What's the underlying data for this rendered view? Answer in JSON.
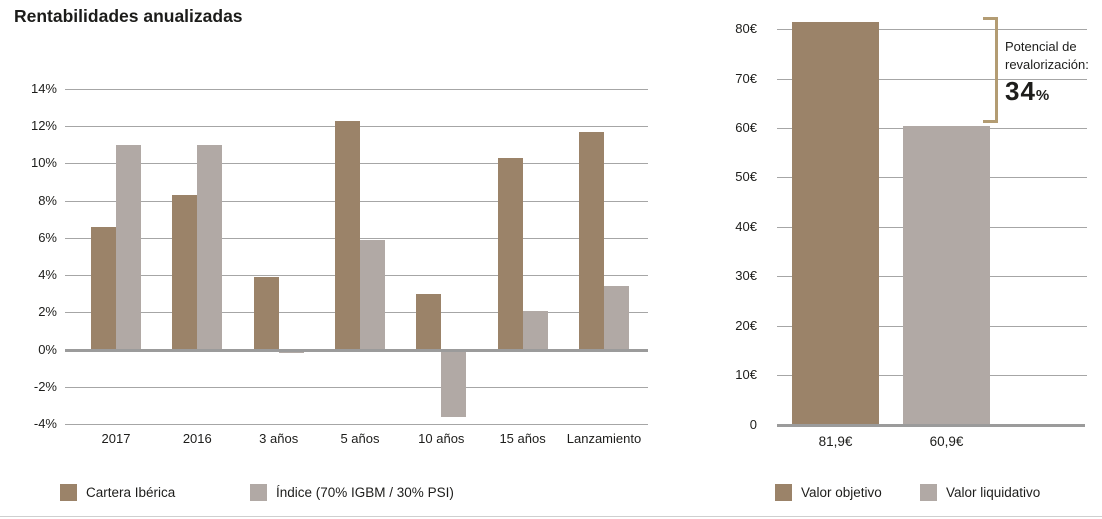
{
  "left_chart": {
    "title": "Rentabilidades anualizadas",
    "legend": [
      {
        "label": "Cartera Ibérica",
        "color": "#9b8369"
      },
      {
        "label": "Índice (70% IGBM / 30% PSI)",
        "color": "#b1a9a5"
      }
    ]
  },
  "right_chart": {
    "annotation": {
      "line1": "Potencial de",
      "line2": "revalorización:",
      "value": "34",
      "unit": "%"
    },
    "legend": [
      {
        "label": "Valor objetivo",
        "color": "#9b8369"
      },
      {
        "label": "Valor liquidativo",
        "color": "#b1a9a5"
      }
    ]
  },
  "colors": {
    "bar_brown": "#9b8369",
    "bar_gray": "#b1a9a5",
    "zero_axis": "#9b9b9b",
    "gridline": "#a6a6a6",
    "bracket": "#b39c73",
    "text": "#1d1d1b",
    "divider": "#cfcfcf"
  },
  "chart_data": [
    {
      "type": "bar",
      "title": "Rentabilidades anualizadas",
      "categories": [
        "2017",
        "2016",
        "3 años",
        "5 años",
        "10 años",
        "15 años",
        "Lanzamiento"
      ],
      "series": [
        {
          "name": "Cartera Ibérica",
          "color": "#9b8369",
          "values": [
            6.7,
            8.4,
            4.0,
            12.4,
            3.1,
            10.4,
            11.8
          ]
        },
        {
          "name": "Índice (70% IGBM / 30% PSI)",
          "color": "#b1a9a5",
          "values": [
            11.1,
            11.1,
            -0.2,
            6.0,
            -3.6,
            2.2,
            3.5
          ]
        }
      ],
      "ylim": [
        -4,
        14
      ],
      "ytick_step": 2,
      "ytick_suffix": "%",
      "grid": true,
      "legend_position": "bottom"
    },
    {
      "type": "bar",
      "categories": [
        "Valor objetivo",
        "Valor liquidativo"
      ],
      "values": [
        81.9,
        60.9
      ],
      "value_labels": [
        "81,9€",
        "60,9€"
      ],
      "bar_colors": [
        "#9b8369",
        "#b1a9a5"
      ],
      "ylim": [
        0,
        80
      ],
      "ytick_step": 10,
      "ytick_suffix": "€",
      "zero_tick_label": "0",
      "grid": true,
      "annotation": "Potencial de revalorización: 34%",
      "legend_position": "bottom"
    }
  ]
}
